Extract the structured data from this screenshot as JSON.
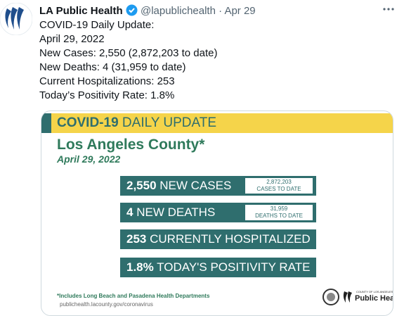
{
  "tweet": {
    "author_name": "LA Public Health",
    "handle": "@lapublichealth",
    "separator": "·",
    "date": "Apr 29",
    "lines": [
      "COVID-19 Daily Update:",
      "April 29, 2022",
      "New Cases: 2,550 (2,872,203 to date)",
      "New Deaths: 4 (31,959 to date)",
      "Current Hospitalizations: 253",
      "Today’s Positivity Rate: 1.8%"
    ]
  },
  "card": {
    "header_bold": "COVID-19",
    "header_rest": "DAILY UPDATE",
    "title": "Los Angeles County*",
    "date": "April 29, 2022",
    "stats": [
      {
        "number": "2,550",
        "label": "NEW CASES",
        "side_number": "2,872,203",
        "side_label": "CASES TO DATE"
      },
      {
        "number": "4",
        "label": "NEW DEATHS",
        "side_number": "31,959",
        "side_label": "DEATHS TO DATE"
      },
      {
        "number": "253",
        "label": "CURRENTLY HOSPITALIZED"
      },
      {
        "number": "1.8%",
        "label": "TODAY'S POSITIVITY RATE"
      }
    ],
    "footnote": "*Includes Long Beach and Pasadena Health Departments",
    "url": "publichealth.lacounty.gov/coronavirus",
    "logo_small": "COUNTY OF LOS ANGELES",
    "logo_name": "Public Health"
  }
}
